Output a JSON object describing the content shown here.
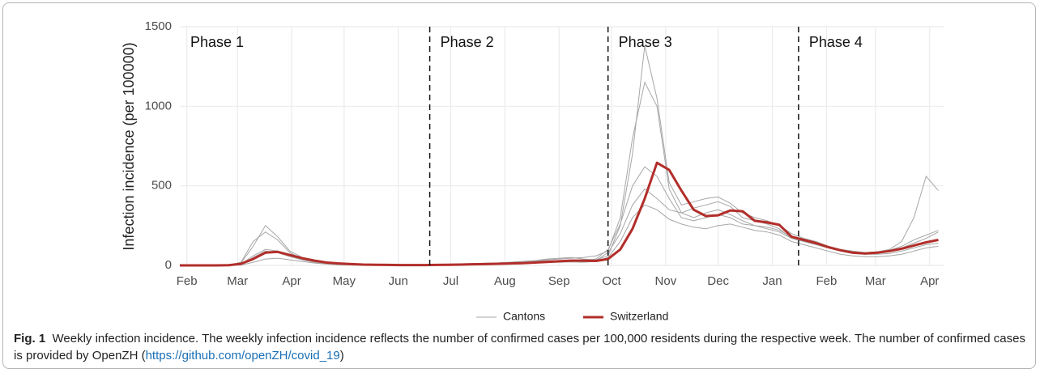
{
  "chart_data": {
    "type": "line",
    "ylabel": "Infection incidence (per 100000)",
    "xlim": [
      0,
      437
    ],
    "ylim": [
      0,
      1500
    ],
    "yticks": [
      0,
      500,
      1000,
      1500
    ],
    "xticks": [
      {
        "value": 4,
        "label": "Feb"
      },
      {
        "value": 33,
        "label": "Mar"
      },
      {
        "value": 64,
        "label": "Apr"
      },
      {
        "value": 94,
        "label": "May"
      },
      {
        "value": 125,
        "label": "Jun"
      },
      {
        "value": 155,
        "label": "Jul"
      },
      {
        "value": 186,
        "label": "Aug"
      },
      {
        "value": 217,
        "label": "Sep"
      },
      {
        "value": 247,
        "label": "Oct"
      },
      {
        "value": 278,
        "label": "Nov"
      },
      {
        "value": 308,
        "label": "Dec"
      },
      {
        "value": 339,
        "label": "Jan"
      },
      {
        "value": 370,
        "label": "Feb"
      },
      {
        "value": 398,
        "label": "Mar"
      },
      {
        "value": 429,
        "label": "Apr"
      }
    ],
    "grid": true,
    "phases": [
      {
        "label": "Phase 1",
        "start": 0
      },
      {
        "label": "Phase 2",
        "start": 143
      },
      {
        "label": "Phase 3",
        "start": 245
      },
      {
        "label": "Phase 4",
        "start": 354
      }
    ],
    "x": [
      0,
      7,
      14,
      21,
      28,
      35,
      42,
      49,
      56,
      63,
      70,
      77,
      84,
      91,
      98,
      105,
      112,
      119,
      126,
      133,
      140,
      147,
      154,
      161,
      168,
      175,
      182,
      189,
      196,
      203,
      210,
      217,
      224,
      231,
      238,
      245,
      252,
      259,
      266,
      273,
      280,
      287,
      294,
      301,
      308,
      315,
      322,
      329,
      336,
      343,
      350,
      357,
      364,
      371,
      378,
      385,
      392,
      399,
      406,
      413,
      420,
      427,
      434
    ],
    "series": [
      {
        "name": "Cantons",
        "color": "#a6a6a6",
        "values": [
          [
            0,
            0,
            0,
            0,
            2,
            15,
            120,
            250,
            180,
            90,
            50,
            25,
            12,
            6,
            4,
            3,
            2,
            2,
            2,
            3,
            4,
            5,
            6,
            8,
            10,
            12,
            15,
            20,
            25,
            30,
            40,
            45,
            50,
            40,
            35,
            60,
            250,
            700,
            1380,
            1050,
            520,
            380,
            400,
            420,
            430,
            390,
            330,
            300,
            280,
            250,
            200,
            170,
            150,
            120,
            100,
            90,
            80,
            85,
            90,
            110,
            140,
            170,
            210
          ],
          [
            0,
            0,
            0,
            0,
            1,
            20,
            150,
            210,
            160,
            80,
            40,
            20,
            10,
            5,
            3,
            2,
            2,
            2,
            3,
            4,
            5,
            6,
            8,
            10,
            12,
            14,
            16,
            20,
            25,
            30,
            35,
            40,
            45,
            50,
            60,
            90,
            300,
            800,
            1150,
            1000,
            480,
            330,
            300,
            330,
            350,
            320,
            280,
            250,
            230,
            210,
            170,
            150,
            130,
            110,
            90,
            75,
            70,
            80,
            95,
            120,
            160,
            190,
            220
          ],
          [
            0,
            0,
            0,
            0,
            0,
            5,
            50,
            90,
            80,
            55,
            35,
            20,
            10,
            5,
            3,
            2,
            1,
            1,
            2,
            3,
            4,
            5,
            7,
            9,
            11,
            13,
            15,
            18,
            22,
            26,
            30,
            28,
            25,
            22,
            30,
            80,
            200,
            380,
            480,
            420,
            350,
            330,
            360,
            380,
            400,
            370,
            300,
            280,
            260,
            230,
            170,
            150,
            130,
            110,
            90,
            75,
            70,
            70,
            75,
            90,
            110,
            130,
            140
          ],
          [
            0,
            0,
            0,
            0,
            0,
            2,
            20,
            40,
            45,
            35,
            25,
            15,
            8,
            4,
            2,
            1,
            1,
            1,
            1,
            2,
            2,
            3,
            4,
            5,
            6,
            7,
            9,
            11,
            14,
            16,
            18,
            20,
            22,
            20,
            25,
            50,
            150,
            300,
            380,
            350,
            290,
            260,
            240,
            230,
            250,
            260,
            240,
            220,
            210,
            190,
            150,
            130,
            110,
            90,
            70,
            60,
            55,
            55,
            60,
            70,
            90,
            110,
            120
          ],
          [
            0,
            0,
            0,
            0,
            1,
            8,
            60,
            100,
            90,
            60,
            35,
            20,
            10,
            5,
            3,
            2,
            2,
            1,
            2,
            3,
            3,
            4,
            5,
            7,
            9,
            11,
            13,
            16,
            20,
            24,
            28,
            30,
            35,
            32,
            40,
            100,
            260,
            500,
            620,
            560,
            420,
            300,
            280,
            300,
            320,
            300,
            260,
            250,
            240,
            220,
            180,
            160,
            140,
            120,
            100,
            85,
            80,
            85,
            100,
            150,
            300,
            560,
            470
          ]
        ]
      },
      {
        "name": "Switzerland",
        "color": "#b22e2a",
        "values": [
          0,
          0,
          0,
          0,
          1,
          10,
          40,
          80,
          85,
          65,
          45,
          30,
          18,
          12,
          8,
          5,
          4,
          3,
          2,
          2,
          2,
          3,
          4,
          5,
          7,
          8,
          10,
          12,
          14,
          18,
          22,
          26,
          30,
          30,
          28,
          40,
          100,
          230,
          420,
          645,
          600,
          470,
          350,
          310,
          315,
          345,
          340,
          280,
          270,
          255,
          180,
          160,
          140,
          115,
          95,
          80,
          75,
          80,
          90,
          105,
          125,
          145,
          160
        ]
      }
    ]
  },
  "caption": {
    "label": "Fig. 1",
    "text": "Weekly infection incidence. The weekly infection incidence reflects the number of confirmed cases per 100,000 residents during the respective week. The number of confirmed cases is provided by OpenZH (",
    "link": "https://github.com/openZH/covid_19",
    "suffix": ")"
  }
}
